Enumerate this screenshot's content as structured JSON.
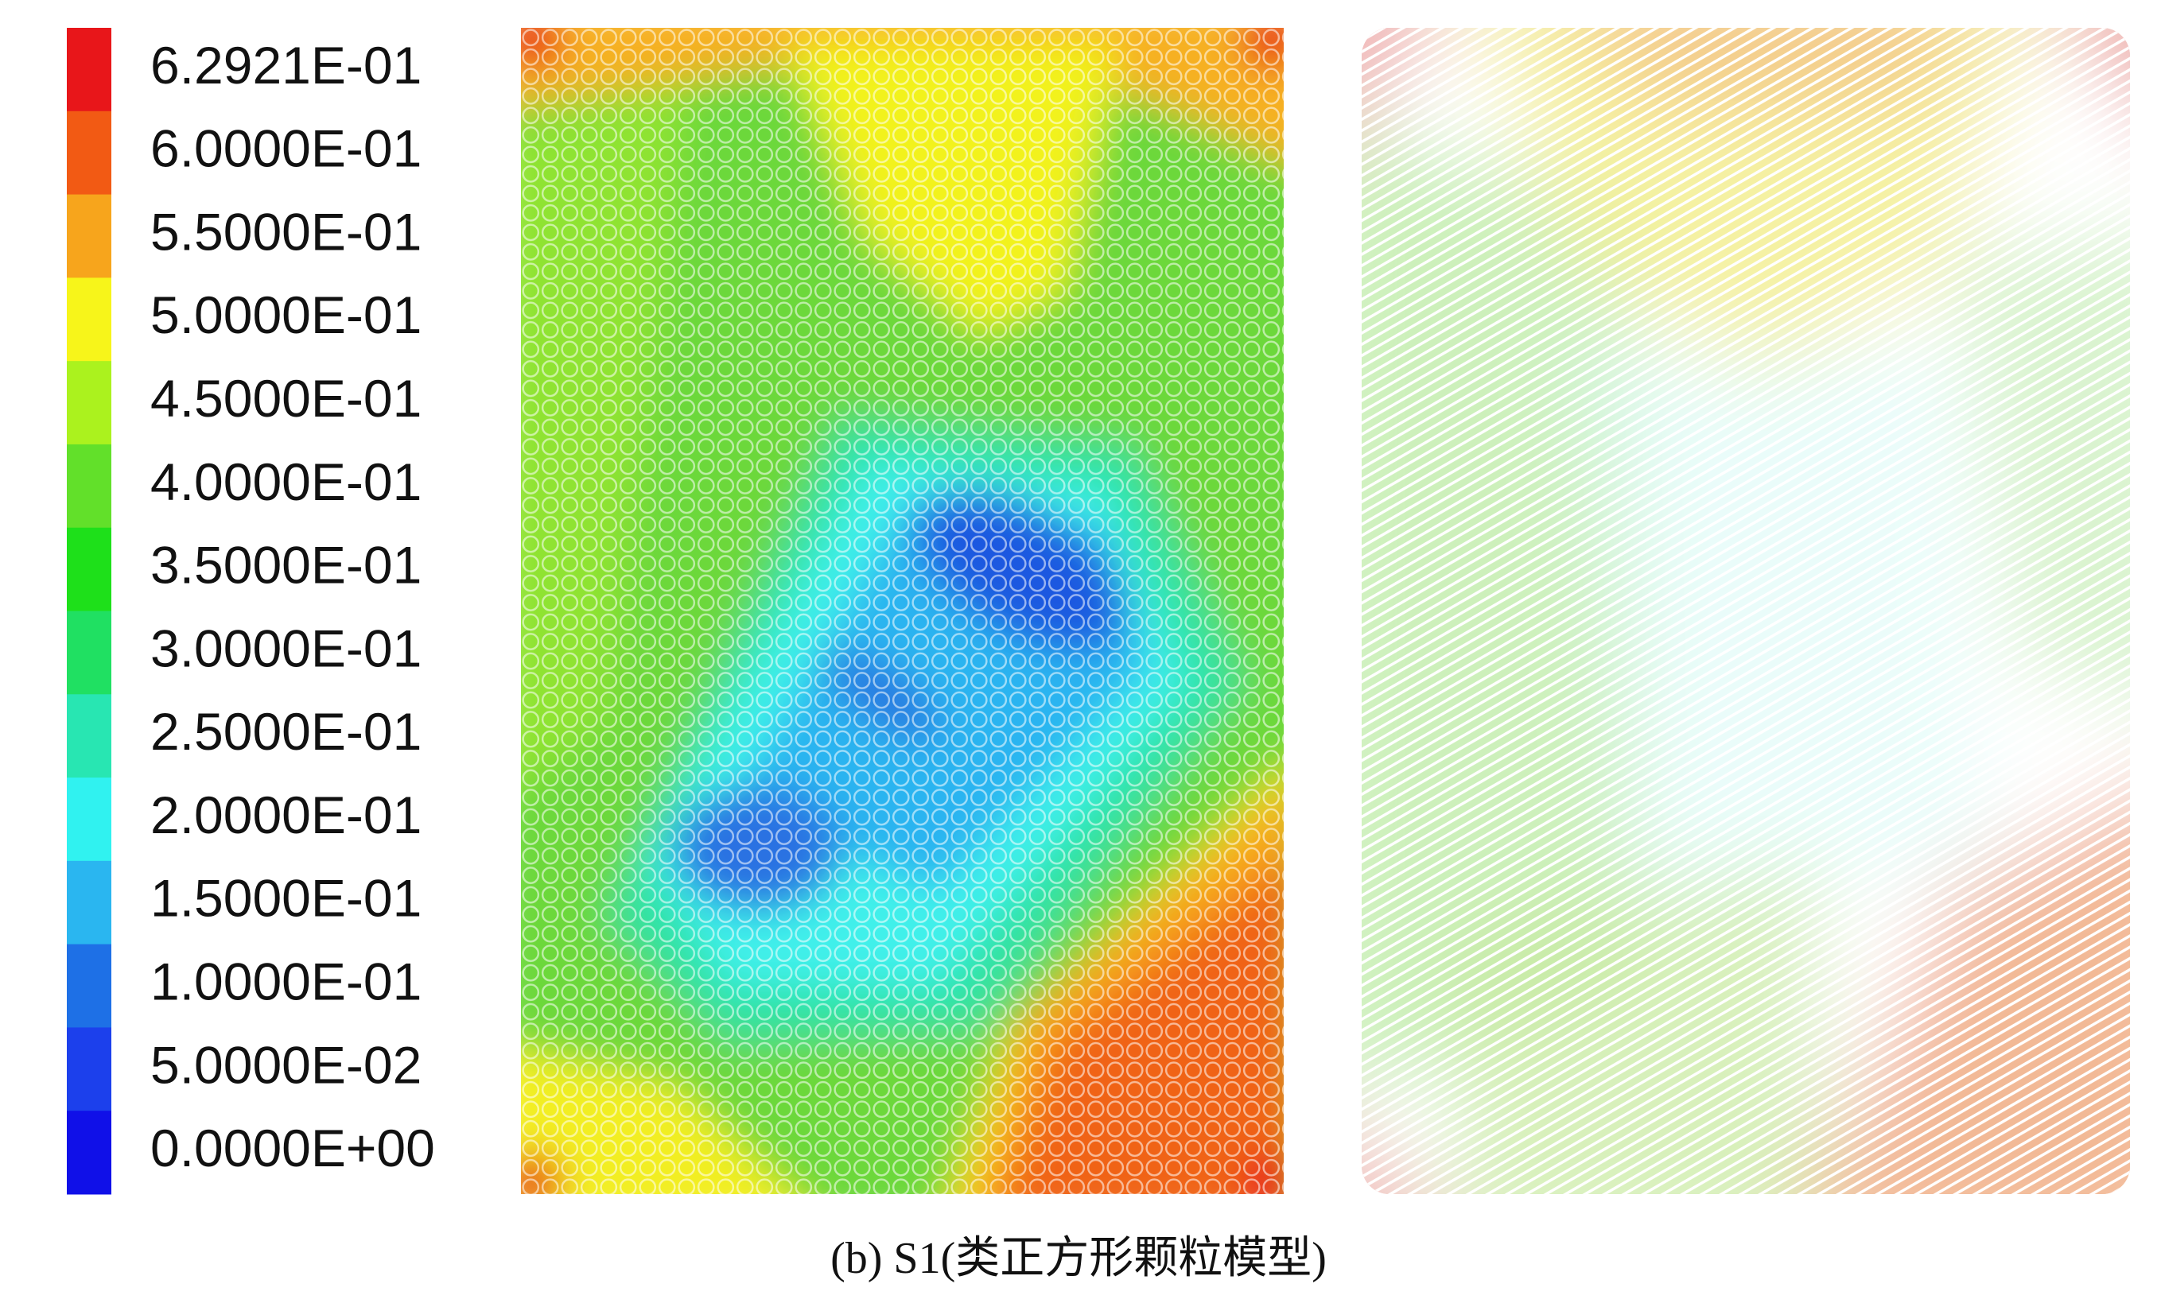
{
  "legend": {
    "labels": [
      "6.2921E-01",
      "6.0000E-01",
      "5.5000E-01",
      "5.0000E-01",
      "4.5000E-01",
      "4.0000E-01",
      "3.5000E-01",
      "3.0000E-01",
      "2.5000E-01",
      "2.0000E-01",
      "1.5000E-01",
      "1.0000E-01",
      "5.0000E-02",
      "0.0000E+00"
    ],
    "colors": [
      "#e8161a",
      "#f25a14",
      "#f7a51c",
      "#f7f51a",
      "#abf21e",
      "#62e02a",
      "#1ee01a",
      "#20e062",
      "#28e6b2",
      "#30f2f0",
      "#2ab6f0",
      "#1e70e6",
      "#1c40ec",
      "#1010e8"
    ]
  },
  "caption": "(b) S1(类正方形颗粒模型)"
}
